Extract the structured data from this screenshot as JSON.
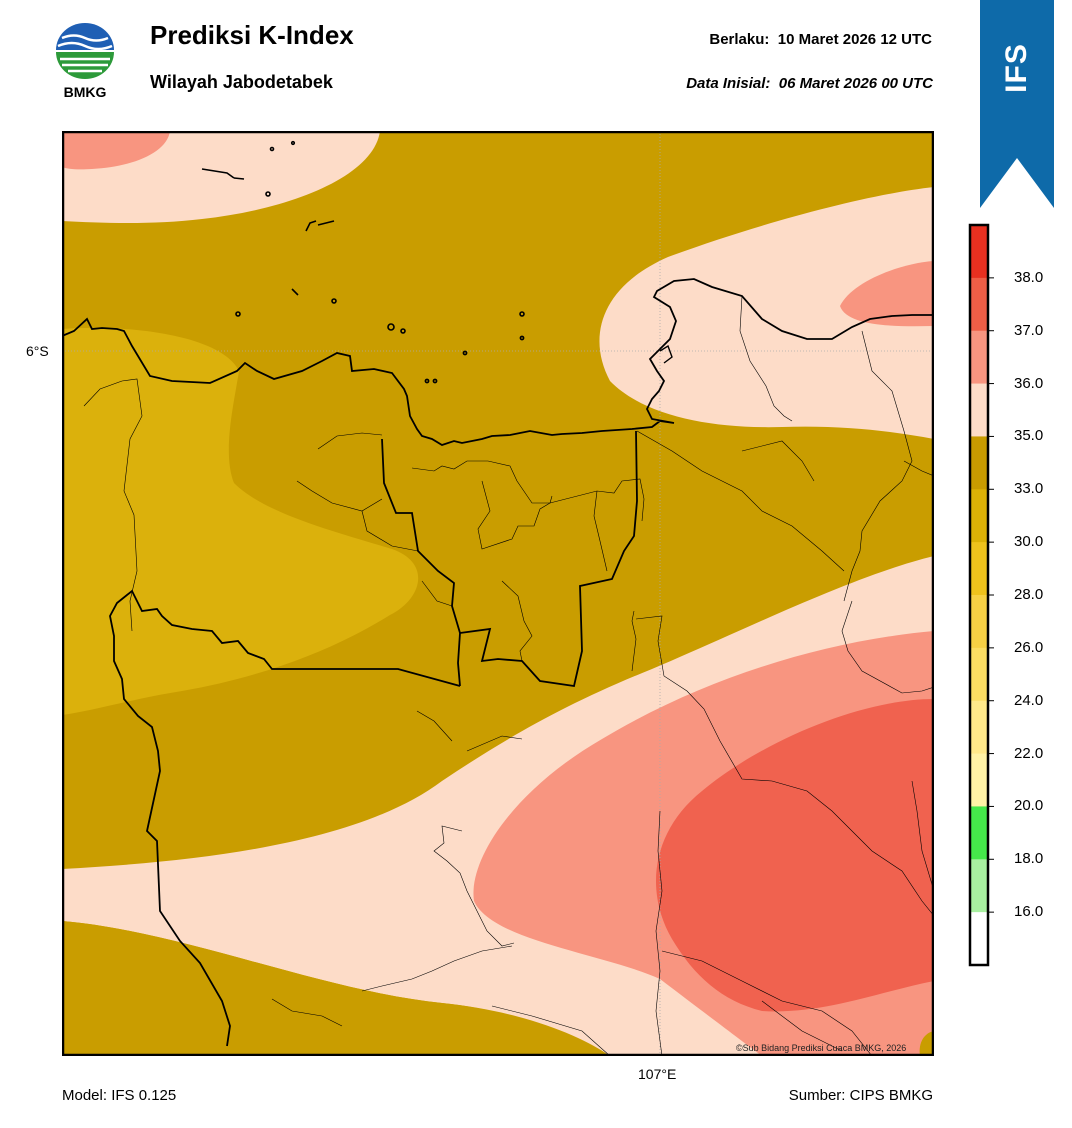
{
  "header": {
    "logo_text": "BMKG",
    "title": "Prediksi K-Index",
    "subtitle": "Wilayah Jabodetabek",
    "valid_label": "Berlaku:",
    "valid_value": "10 Maret 2026 12 UTC",
    "init_label": "Data Inisial:",
    "init_value": "06 Maret 2026 00 UTC",
    "ribbon_label": "IFS"
  },
  "map": {
    "lat_tick": "6°S",
    "lon_tick": "107°E",
    "credit": "©Sub Bidang Prediksi Cuaca BMKG, 2026",
    "field": "K-Index",
    "filled_classes": [
      {
        "range": "30.0-33.0",
        "color": "#dbb10c"
      },
      {
        "range": "33.0-35.0",
        "color": "#c99d00"
      },
      {
        "range": "35.0-36.0",
        "color": "#fddcc8"
      },
      {
        "range": "36.0-37.0",
        "color": "#f89580"
      },
      {
        "range": "37.0-38.0",
        "color": "#f0624f"
      }
    ]
  },
  "colorbar": {
    "ticks": [
      "16.0",
      "18.0",
      "20.0",
      "22.0",
      "24.0",
      "26.0",
      "28.0",
      "30.0",
      "33.0",
      "35.0",
      "36.0",
      "37.0",
      "38.0"
    ],
    "colors": [
      "#ffffff",
      "#a8f0a0",
      "#45e84a",
      "#fff3a6",
      "#ffe98a",
      "#fbdd62",
      "#f6d044",
      "#eec21c",
      "#dcb106",
      "#c89b00",
      "#fddcc8",
      "#f89580",
      "#ee5e46",
      "#e83020"
    ]
  },
  "footer": {
    "model": "Model: IFS 0.125",
    "source": "Sumber: CIPS BMKG"
  }
}
